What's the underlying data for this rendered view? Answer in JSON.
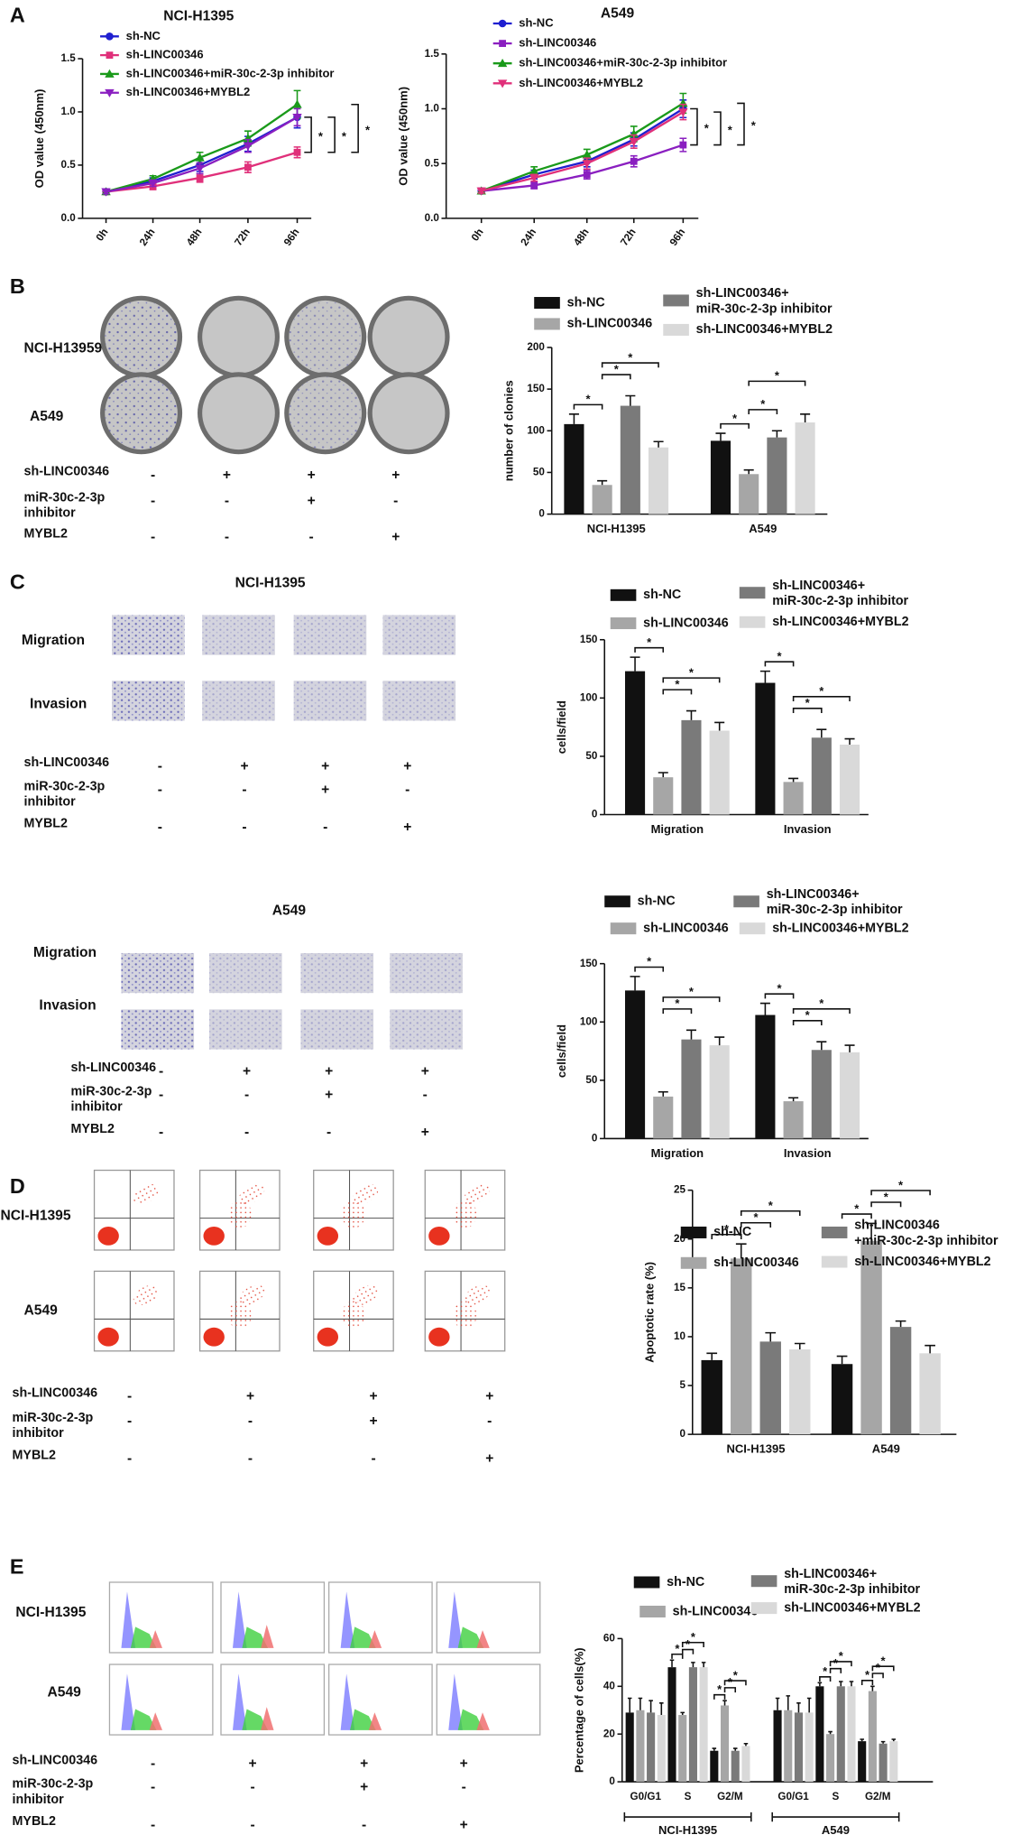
{
  "chart_data": [
    {
      "type": "line",
      "title": "NCI-H1395",
      "y_label": "OD value (450nm)",
      "categories": [
        "0h",
        "24h",
        "48h",
        "72h",
        "96h"
      ],
      "series": [
        {
          "name": "sh-NC",
          "color": "#1f1fd0",
          "marker": "circle",
          "values": [
            0.25,
            0.35,
            0.5,
            0.7,
            0.95
          ],
          "errors": [
            0.02,
            0.03,
            0.06,
            0.07,
            0.1
          ]
        },
        {
          "name": "sh-LINC00346",
          "color": "#e0307a",
          "marker": "square",
          "values": [
            0.25,
            0.3,
            0.38,
            0.48,
            0.62
          ],
          "errors": [
            0.02,
            0.03,
            0.04,
            0.05,
            0.05
          ]
        },
        {
          "name": "sh-LINC00346+miR-30c-2-3p inhibitor",
          "color": "#1a9a1a",
          "marker": "triangle",
          "values": [
            0.25,
            0.37,
            0.57,
            0.75,
            1.07
          ],
          "errors": [
            0.02,
            0.03,
            0.05,
            0.07,
            0.13
          ]
        },
        {
          "name": "sh-LINC00346+MYBL2",
          "color": "#8a1fc0",
          "marker": "triangle-down",
          "values": [
            0.25,
            0.33,
            0.47,
            0.68,
            0.95
          ],
          "errors": [
            0.02,
            0.03,
            0.05,
            0.06,
            0.08
          ]
        }
      ],
      "ylim": [
        0,
        1.5
      ],
      "yticks": [
        {
          "value": 0,
          "label": "0.0"
        },
        {
          "value": 0.5,
          "label": "0.5"
        },
        {
          "value": 1,
          "label": "1.0"
        },
        {
          "value": 1.5,
          "label": "1.5"
        }
      ],
      "annotations": [
        "*",
        "*",
        "*"
      ]
    },
    {
      "type": "line",
      "title": "A549",
      "y_label": "OD value (450nm)",
      "categories": [
        "0h",
        "24h",
        "48h",
        "72h",
        "96h"
      ],
      "series": [
        {
          "name": "sh-NC",
          "color": "#1f1fd0",
          "marker": "circle",
          "values": [
            0.25,
            0.4,
            0.52,
            0.72,
            1.0
          ],
          "errors": [
            0.02,
            0.04,
            0.05,
            0.06,
            0.08
          ]
        },
        {
          "name": "sh-LINC00346",
          "color": "#8a1fc0",
          "marker": "square",
          "values": [
            0.25,
            0.3,
            0.4,
            0.52,
            0.67
          ],
          "errors": [
            0.02,
            0.03,
            0.04,
            0.05,
            0.06
          ]
        },
        {
          "name": "sh-LINC00346+miR-30c-2-3p inhibitor",
          "color": "#1a9a1a",
          "marker": "triangle",
          "values": [
            0.25,
            0.43,
            0.58,
            0.77,
            1.05
          ],
          "errors": [
            0.02,
            0.04,
            0.05,
            0.07,
            0.09
          ]
        },
        {
          "name": "sh-LINC00346+MYBL2",
          "color": "#e0307a",
          "marker": "triangle-down",
          "values": [
            0.25,
            0.37,
            0.5,
            0.7,
            0.97
          ],
          "errors": [
            0.02,
            0.03,
            0.05,
            0.06,
            0.07
          ]
        }
      ],
      "ylim": [
        0,
        1.5
      ],
      "yticks": [
        {
          "value": 0,
          "label": "0.0"
        },
        {
          "value": 0.5,
          "label": "0.5"
        },
        {
          "value": 1,
          "label": "1.0"
        },
        {
          "value": 1.5,
          "label": "1.5"
        }
      ],
      "annotations": [
        "*",
        "*",
        "*"
      ]
    },
    {
      "type": "bar",
      "y_label": "number of clonies",
      "categories": [
        "NCI-H1395",
        "A549"
      ],
      "series": [
        {
          "name": "sh-NC",
          "color": "#111111",
          "values": [
            108,
            88
          ],
          "errors": [
            12,
            9
          ]
        },
        {
          "name": "sh-LINC00346",
          "color": "#a6a6a6",
          "values": [
            35,
            48
          ],
          "errors": [
            5,
            5
          ]
        },
        {
          "name": "sh-LINC00346+\nmiR-30c-2-3p inhibitor",
          "color": "#7a7a7a",
          "values": [
            130,
            92
          ],
          "errors": [
            12,
            8
          ]
        },
        {
          "name": "sh-LINC00346+MYBL2",
          "color": "#d9d9d9",
          "values": [
            80,
            110
          ],
          "errors": [
            7,
            10
          ]
        }
      ],
      "ylim": [
        0,
        200
      ],
      "yticks": [
        0,
        50,
        100,
        150,
        200
      ],
      "annotations": [
        "*",
        "*",
        "*",
        "*",
        "*",
        "*"
      ]
    },
    {
      "type": "bar",
      "y_label": "cells/field",
      "categories": [
        "Migration",
        "Invasion"
      ],
      "series": [
        {
          "name": "sh-NC",
          "color": "#111111",
          "values": [
            123,
            113
          ],
          "errors": [
            12,
            10
          ]
        },
        {
          "name": "sh-LINC00346",
          "color": "#a6a6a6",
          "values": [
            32,
            28
          ],
          "errors": [
            4,
            3
          ]
        },
        {
          "name": "sh-LINC00346+\nmiR-30c-2-3p inhibitor",
          "color": "#7a7a7a",
          "values": [
            81,
            66
          ],
          "errors": [
            8,
            7
          ]
        },
        {
          "name": "sh-LINC00346+MYBL2",
          "color": "#d9d9d9",
          "values": [
            72,
            60
          ],
          "errors": [
            7,
            5
          ]
        }
      ],
      "ylim": [
        0,
        150
      ],
      "yticks": [
        0,
        50,
        100,
        150
      ],
      "annotations": [
        "*",
        "*",
        "*",
        "*",
        "*",
        "*"
      ]
    },
    {
      "type": "bar",
      "y_label": "cells/field",
      "categories": [
        "Migration",
        "Invasion"
      ],
      "series": [
        {
          "name": "sh-NC",
          "color": "#111111",
          "values": [
            127,
            106
          ],
          "errors": [
            12,
            10
          ]
        },
        {
          "name": "sh-LINC00346",
          "color": "#a6a6a6",
          "values": [
            36,
            32
          ],
          "errors": [
            4,
            3
          ]
        },
        {
          "name": "sh-LINC00346+\nmiR-30c-2-3p inhibitor",
          "color": "#7a7a7a",
          "values": [
            85,
            76
          ],
          "errors": [
            8,
            7
          ]
        },
        {
          "name": "sh-LINC00346+MYBL2",
          "color": "#d9d9d9",
          "values": [
            80,
            74
          ],
          "errors": [
            7,
            6
          ]
        }
      ],
      "ylim": [
        0,
        150
      ],
      "yticks": [
        0,
        50,
        100,
        150
      ],
      "annotations": [
        "*",
        "*",
        "*",
        "*",
        "*",
        "*"
      ]
    },
    {
      "type": "bar",
      "y_label": "Apoptotic rate (%)",
      "categories": [
        "NCI-H1395",
        "A549"
      ],
      "series": [
        {
          "name": "sh-NC",
          "color": "#111111",
          "values": [
            7.6,
            7.2
          ],
          "errors": [
            0.7,
            0.8
          ]
        },
        {
          "name": "sh-LINC00346",
          "color": "#a6a6a6",
          "values": [
            18,
            19.8
          ],
          "errors": [
            1.5,
            1.8
          ]
        },
        {
          "name": "sh-LINC00346\n+miR-30c-2-3p inhibitor",
          "color": "#7a7a7a",
          "values": [
            9.5,
            11
          ],
          "errors": [
            0.9,
            0.6
          ]
        },
        {
          "name": "sh-LINC00346+MYBL2",
          "color": "#d9d9d9",
          "values": [
            8.7,
            8.3
          ],
          "errors": [
            0.6,
            0.8
          ]
        }
      ],
      "ylim": [
        0,
        25
      ],
      "yticks": [
        0,
        5,
        10,
        15,
        20,
        25
      ],
      "annotations": [
        "*",
        "*",
        "*",
        "*",
        "*",
        "*"
      ]
    },
    {
      "type": "bar",
      "y_label": "Percentage of cells(%)",
      "categories": [
        "G0/G1",
        "S",
        "G2/M",
        "G0/G1",
        "S",
        "G2/M"
      ],
      "group_labels": [
        "NCI-H1395",
        "A549"
      ],
      "series": [
        {
          "name": "sh-NC",
          "color": "#111111",
          "values": [
            29,
            48,
            13,
            30,
            40,
            17
          ],
          "errors": [
            6,
            3,
            1,
            5,
            1.5,
            0.8
          ]
        },
        {
          "name": "sh-LINC00346",
          "color": "#a6a6a6",
          "values": [
            30,
            28,
            32,
            30,
            20,
            38
          ],
          "errors": [
            5,
            1,
            2,
            6,
            1,
            2
          ]
        },
        {
          "name": "sh-LINC00346+\nmiR-30c-2-3p inhibitor",
          "color": "#7a7a7a",
          "values": [
            29,
            48,
            13,
            29,
            40,
            16
          ],
          "errors": [
            5,
            2,
            1,
            4,
            2,
            0.8
          ]
        },
        {
          "name": "sh-LINC00346+MYBL2",
          "color": "#d9d9d9",
          "values": [
            28,
            48,
            15,
            29,
            40,
            17
          ],
          "errors": [
            5,
            2,
            1,
            6,
            2,
            0.8
          ]
        }
      ],
      "ylim": [
        0,
        60
      ],
      "yticks": [
        0,
        20,
        40,
        60
      ],
      "annotations": [
        "*",
        "*",
        "*",
        "*",
        "*",
        "*",
        "*",
        "*",
        "*",
        "*",
        "*",
        "*"
      ]
    }
  ],
  "panel_letters": [
    "A",
    "B",
    "C",
    "D",
    "E"
  ],
  "image_blocks": [
    {
      "row_labels": [
        "NCI-H13959",
        "A549"
      ],
      "treatments": [
        {
          "label": "sh-LINC00346",
          "signs": [
            "-",
            "+",
            "+",
            "+"
          ]
        },
        {
          "label": "miR-30c-2-3p\ninhibitor",
          "signs": [
            "-",
            "-",
            "+",
            "-"
          ]
        },
        {
          "label": "MYBL2",
          "signs": [
            "-",
            "-",
            "-",
            "+"
          ]
        }
      ]
    },
    {
      "title": "NCI-H1395",
      "row_labels": [
        "Migration",
        "Invasion"
      ],
      "treatments": [
        {
          "label": "sh-LINC00346",
          "signs": [
            "-",
            "+",
            "+",
            "+"
          ]
        },
        {
          "label": "miR-30c-2-3p\ninhibitor",
          "signs": [
            "-",
            "-",
            "+",
            "-"
          ]
        },
        {
          "label": "MYBL2",
          "signs": [
            "-",
            "-",
            "-",
            "+"
          ]
        }
      ]
    },
    {
      "title": "A549",
      "row_labels": [
        "Migration",
        "Invasion"
      ],
      "treatments": [
        {
          "label": "sh-LINC00346",
          "signs": [
            "-",
            "+",
            "+",
            "+"
          ]
        },
        {
          "label": "miR-30c-2-3p\ninhibitor",
          "signs": [
            "-",
            "-",
            "+",
            "-"
          ]
        },
        {
          "label": "MYBL2",
          "signs": [
            "-",
            "-",
            "-",
            "+"
          ]
        }
      ]
    },
    {
      "row_labels": [
        "NCI-H1395",
        "A549"
      ],
      "treatments": [
        {
          "label": "sh-LINC00346",
          "signs": [
            "-",
            "+",
            "+",
            "+"
          ]
        },
        {
          "label": "miR-30c-2-3p\ninhibitor",
          "signs": [
            "-",
            "-",
            "+",
            "-"
          ]
        },
        {
          "label": "MYBL2",
          "signs": [
            "-",
            "-",
            "-",
            "+"
          ]
        }
      ]
    },
    {
      "row_labels": [
        "NCI-H1395",
        "A549"
      ],
      "treatments": [
        {
          "label": "sh-LINC00346",
          "signs": [
            "-",
            "+",
            "+",
            "+"
          ]
        },
        {
          "label": "miR-30c-2-3p\ninhibitor",
          "signs": [
            "-",
            "-",
            "+",
            "-"
          ]
        },
        {
          "label": "MYBL2",
          "signs": [
            "-",
            "-",
            "-",
            "+"
          ]
        }
      ]
    }
  ]
}
